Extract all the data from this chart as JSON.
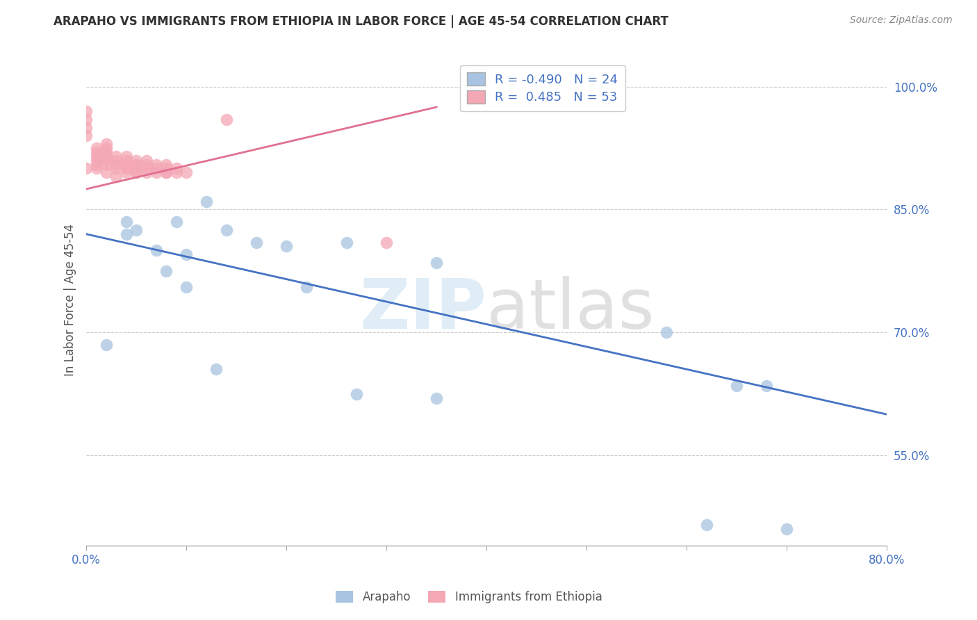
{
  "title": "ARAPAHO VS IMMIGRANTS FROM ETHIOPIA IN LABOR FORCE | AGE 45-54 CORRELATION CHART",
  "source_text": "Source: ZipAtlas.com",
  "ylabel": "In Labor Force | Age 45-54",
  "watermark": "ZIPatlas",
  "xlim": [
    0.0,
    0.8
  ],
  "ylim": [
    0.44,
    1.04
  ],
  "xticks": [
    0.0,
    0.1,
    0.2,
    0.3,
    0.4,
    0.5,
    0.6,
    0.7,
    0.8
  ],
  "xticklabels": [
    "0.0%",
    "",
    "",
    "",
    "",
    "",
    "",
    "",
    "80.0%"
  ],
  "yticks": [
    0.55,
    0.7,
    0.85,
    1.0
  ],
  "yticklabels": [
    "55.0%",
    "70.0%",
    "85.0%",
    "100.0%"
  ],
  "arapaho_color": "#a8c4e0",
  "ethiopia_color": "#f4a7b5",
  "arapaho_line_color": "#4472c4",
  "ethiopia_line_color": "#e07090",
  "legend_R_arapaho": "-0.490",
  "legend_N_arapaho": "24",
  "legend_R_ethiopia": "0.485",
  "legend_N_ethiopia": "53",
  "arapaho_x": [
    0.02,
    0.04,
    0.04,
    0.05,
    0.07,
    0.08,
    0.09,
    0.1,
    0.1,
    0.12,
    0.13,
    0.14,
    0.17,
    0.2,
    0.22,
    0.26,
    0.27,
    0.35,
    0.35,
    0.58,
    0.62,
    0.65,
    0.68,
    0.7
  ],
  "arapaho_y": [
    0.685,
    0.835,
    0.82,
    0.825,
    0.8,
    0.775,
    0.835,
    0.795,
    0.755,
    0.86,
    0.655,
    0.825,
    0.81,
    0.805,
    0.755,
    0.81,
    0.625,
    0.62,
    0.785,
    0.7,
    0.465,
    0.635,
    0.635,
    0.46
  ],
  "ethiopia_x": [
    0.0,
    0.0,
    0.0,
    0.0,
    0.0,
    0.01,
    0.01,
    0.01,
    0.01,
    0.01,
    0.01,
    0.02,
    0.02,
    0.02,
    0.02,
    0.02,
    0.02,
    0.02,
    0.03,
    0.03,
    0.03,
    0.03,
    0.03,
    0.04,
    0.04,
    0.04,
    0.04,
    0.04,
    0.04,
    0.04,
    0.05,
    0.05,
    0.05,
    0.05,
    0.05,
    0.05,
    0.05,
    0.06,
    0.06,
    0.06,
    0.06,
    0.07,
    0.07,
    0.07,
    0.08,
    0.08,
    0.08,
    0.08,
    0.09,
    0.09,
    0.1,
    0.14,
    0.3
  ],
  "ethiopia_y": [
    0.9,
    0.94,
    0.95,
    0.96,
    0.97,
    0.91,
    0.92,
    0.925,
    0.915,
    0.9,
    0.905,
    0.91,
    0.915,
    0.905,
    0.92,
    0.925,
    0.93,
    0.895,
    0.905,
    0.91,
    0.9,
    0.89,
    0.915,
    0.9,
    0.905,
    0.895,
    0.91,
    0.915,
    0.9,
    0.905,
    0.895,
    0.905,
    0.9,
    0.895,
    0.91,
    0.905,
    0.9,
    0.9,
    0.895,
    0.905,
    0.91,
    0.895,
    0.905,
    0.9,
    0.895,
    0.905,
    0.9,
    0.895,
    0.895,
    0.9,
    0.895,
    0.96,
    0.81
  ],
  "blue_line_x": [
    0.0,
    0.8
  ],
  "blue_line_y": [
    0.82,
    0.6
  ],
  "pink_line_x": [
    0.0,
    0.35
  ],
  "pink_line_y": [
    0.875,
    0.975
  ]
}
